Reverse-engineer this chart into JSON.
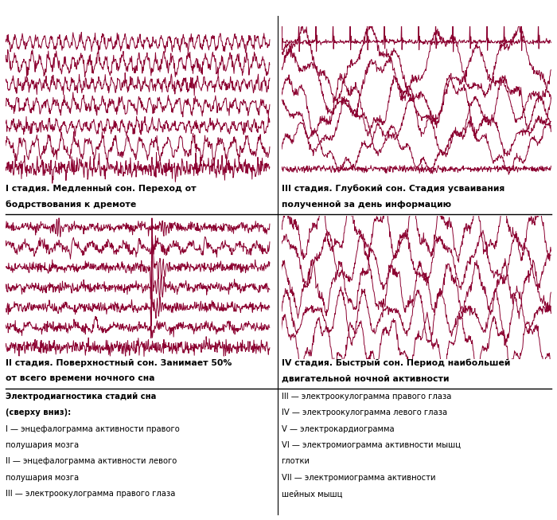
{
  "background_color": "#ffffff",
  "signal_color": "#8b0030",
  "label_color": "#000000",
  "gray_bar_color": "#d4d4d4",
  "line_color": "#000000",
  "stage1_title_line1": "I стадия. Медленный сон. Переход от",
  "stage1_title_line2": "бодрствования к дремоте",
  "stage2_title_line1": "II стадия. Поверхностный сон. Занимает 50%",
  "stage2_title_line2": "от всего времени ночного сна",
  "stage3_title_line1": "III стадия. Глубокий сон. Стадия усваивания",
  "stage3_title_line2": "полученной за день информацию",
  "stage4_title_line1": "IV стадия. Быстрый сон. Период наибольшей",
  "stage4_title_line2": "двигательной ночной активности",
  "legend_left_bold": "Электродиагностика стадий сна\n(сверху вниз):",
  "legend_left_normal": "I — энцефалограмма активности правого\nполушария мозга\nII — энцефалограмма активности левого\nполушария мозга\nIII — электроокулограмма правого глаза",
  "legend_right": "III — электроокулограмма правого глаза\nIV — электроокулограмма левого глаза\nV — электрокардиограмма\nVI — электромиограмма активности мышц\nглотки\nVII — электромиограмма активности\nшейных мышц"
}
